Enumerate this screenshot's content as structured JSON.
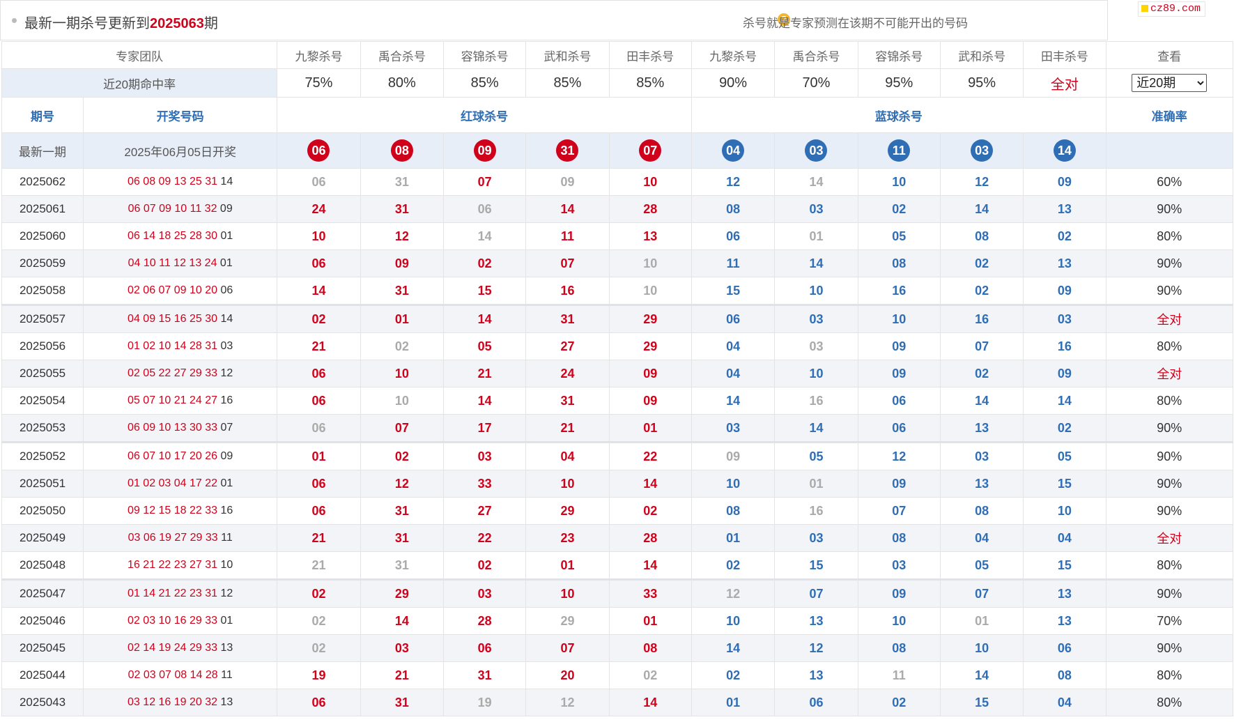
{
  "header": {
    "title_prefix": "最新一期杀号更新到",
    "issue": "2025063",
    "title_suffix": "期",
    "hint": "杀号就是专家预测在该期不可能开出的号码",
    "hint_icon": "question-icon",
    "logo": "cz89.com"
  },
  "experts": {
    "team_label": "专家团队",
    "names": [
      "九黎杀号",
      "禹合杀号",
      "容锦杀号",
      "武和杀号",
      "田丰杀号",
      "九黎杀号",
      "禹合杀号",
      "容锦杀号",
      "武和杀号",
      "田丰杀号"
    ],
    "view_label": "查看"
  },
  "hitrate": {
    "label": "近20期命中率",
    "values": [
      "75%",
      "80%",
      "85%",
      "85%",
      "85%",
      "90%",
      "70%",
      "95%",
      "95%",
      "全对"
    ],
    "select_value": "近20期"
  },
  "columns": {
    "issue": "期号",
    "draw": "开奖号码",
    "red": "红球杀号",
    "blue": "蓝球杀号",
    "accuracy": "准确率"
  },
  "latest": {
    "label": "最新一期",
    "date": "2025年06月05日开奖",
    "red": [
      "06",
      "08",
      "09",
      "31",
      "07"
    ],
    "blue": [
      "04",
      "03",
      "11",
      "03",
      "14"
    ]
  },
  "colors": {
    "red": "#d0021b",
    "blue": "#2f6eb5",
    "miss": "#aaaaaa",
    "rate_bg": "#e8eef8"
  },
  "rows": [
    {
      "issue": "2025062",
      "reds": "06 08 09 13 25 31",
      "blue": "14",
      "kills": [
        "06",
        "31",
        "07",
        "09",
        "10",
        "12",
        "14",
        "10",
        "12",
        "09"
      ],
      "miss": [
        0,
        1,
        3,
        6
      ],
      "acc": "60%"
    },
    {
      "issue": "2025061",
      "reds": "06 07 09 10 11 32",
      "blue": "09",
      "kills": [
        "24",
        "31",
        "06",
        "14",
        "28",
        "08",
        "03",
        "02",
        "14",
        "13"
      ],
      "miss": [
        2
      ],
      "acc": "90%"
    },
    {
      "issue": "2025060",
      "reds": "06 14 18 25 28 30",
      "blue": "01",
      "kills": [
        "10",
        "12",
        "14",
        "11",
        "13",
        "06",
        "01",
        "05",
        "08",
        "02"
      ],
      "miss": [
        2,
        6
      ],
      "acc": "80%"
    },
    {
      "issue": "2025059",
      "reds": "04 10 11 12 13 24",
      "blue": "01",
      "kills": [
        "06",
        "09",
        "02",
        "07",
        "10",
        "11",
        "14",
        "08",
        "02",
        "13"
      ],
      "miss": [
        4
      ],
      "acc": "90%"
    },
    {
      "issue": "2025058",
      "reds": "02 06 07 09 10 20",
      "blue": "06",
      "kills": [
        "14",
        "31",
        "15",
        "16",
        "10",
        "15",
        "10",
        "16",
        "02",
        "09"
      ],
      "miss": [
        4
      ],
      "acc": "90%"
    },
    {
      "issue": "2025057",
      "reds": "04 09 15 16 25 30",
      "blue": "14",
      "kills": [
        "02",
        "01",
        "14",
        "31",
        "29",
        "06",
        "03",
        "10",
        "16",
        "03"
      ],
      "miss": [],
      "acc": "全对"
    },
    {
      "issue": "2025056",
      "reds": "01 02 10 14 28 31",
      "blue": "03",
      "kills": [
        "21",
        "02",
        "05",
        "27",
        "29",
        "04",
        "03",
        "09",
        "07",
        "16"
      ],
      "miss": [
        1,
        6
      ],
      "acc": "80%"
    },
    {
      "issue": "2025055",
      "reds": "02 05 22 27 29 33",
      "blue": "12",
      "kills": [
        "06",
        "10",
        "21",
        "24",
        "09",
        "04",
        "10",
        "09",
        "02",
        "09"
      ],
      "miss": [],
      "acc": "全对"
    },
    {
      "issue": "2025054",
      "reds": "05 07 10 21 24 27",
      "blue": "16",
      "kills": [
        "06",
        "10",
        "14",
        "31",
        "09",
        "14",
        "16",
        "06",
        "14",
        "14"
      ],
      "miss": [
        1,
        6
      ],
      "acc": "80%"
    },
    {
      "issue": "2025053",
      "reds": "06 09 10 13 30 33",
      "blue": "07",
      "kills": [
        "06",
        "07",
        "17",
        "21",
        "01",
        "03",
        "14",
        "06",
        "13",
        "02"
      ],
      "miss": [
        0
      ],
      "acc": "90%"
    },
    {
      "issue": "2025052",
      "reds": "06 07 10 17 20 26",
      "blue": "09",
      "kills": [
        "01",
        "02",
        "03",
        "04",
        "22",
        "09",
        "05",
        "12",
        "03",
        "05"
      ],
      "miss": [
        5
      ],
      "acc": "90%"
    },
    {
      "issue": "2025051",
      "reds": "01 02 03 04 17 22",
      "blue": "01",
      "kills": [
        "06",
        "12",
        "33",
        "10",
        "14",
        "10",
        "01",
        "09",
        "13",
        "15"
      ],
      "miss": [
        6
      ],
      "acc": "90%"
    },
    {
      "issue": "2025050",
      "reds": "09 12 15 18 22 33",
      "blue": "16",
      "kills": [
        "06",
        "31",
        "27",
        "29",
        "02",
        "08",
        "16",
        "07",
        "08",
        "10"
      ],
      "miss": [
        6
      ],
      "acc": "90%"
    },
    {
      "issue": "2025049",
      "reds": "03 06 19 27 29 33",
      "blue": "11",
      "kills": [
        "21",
        "31",
        "22",
        "23",
        "28",
        "01",
        "03",
        "08",
        "04",
        "04"
      ],
      "miss": [],
      "acc": "全对"
    },
    {
      "issue": "2025048",
      "reds": "16 21 22 23 27 31",
      "blue": "10",
      "kills": [
        "21",
        "31",
        "02",
        "01",
        "14",
        "02",
        "15",
        "03",
        "05",
        "15"
      ],
      "miss": [
        0,
        1
      ],
      "acc": "80%"
    },
    {
      "issue": "2025047",
      "reds": "01 14 21 22 23 31",
      "blue": "12",
      "kills": [
        "02",
        "29",
        "03",
        "10",
        "33",
        "12",
        "07",
        "09",
        "07",
        "13"
      ],
      "miss": [
        5
      ],
      "acc": "90%"
    },
    {
      "issue": "2025046",
      "reds": "02 03 10 16 29 33",
      "blue": "01",
      "kills": [
        "02",
        "14",
        "28",
        "29",
        "01",
        "10",
        "13",
        "10",
        "01",
        "13"
      ],
      "miss": [
        0,
        3,
        8
      ],
      "acc": "70%"
    },
    {
      "issue": "2025045",
      "reds": "02 14 19 24 29 33",
      "blue": "13",
      "kills": [
        "02",
        "03",
        "06",
        "07",
        "08",
        "14",
        "12",
        "08",
        "10",
        "06"
      ],
      "miss": [
        0
      ],
      "acc": "90%"
    },
    {
      "issue": "2025044",
      "reds": "02 03 07 08 14 28",
      "blue": "11",
      "kills": [
        "19",
        "21",
        "31",
        "20",
        "02",
        "02",
        "13",
        "11",
        "14",
        "08"
      ],
      "miss": [
        4,
        7
      ],
      "acc": "80%"
    },
    {
      "issue": "2025043",
      "reds": "03 12 16 19 20 32",
      "blue": "13",
      "kills": [
        "06",
        "31",
        "19",
        "12",
        "14",
        "01",
        "06",
        "02",
        "15",
        "04"
      ],
      "miss": [
        2,
        3
      ],
      "acc": "80%"
    }
  ]
}
